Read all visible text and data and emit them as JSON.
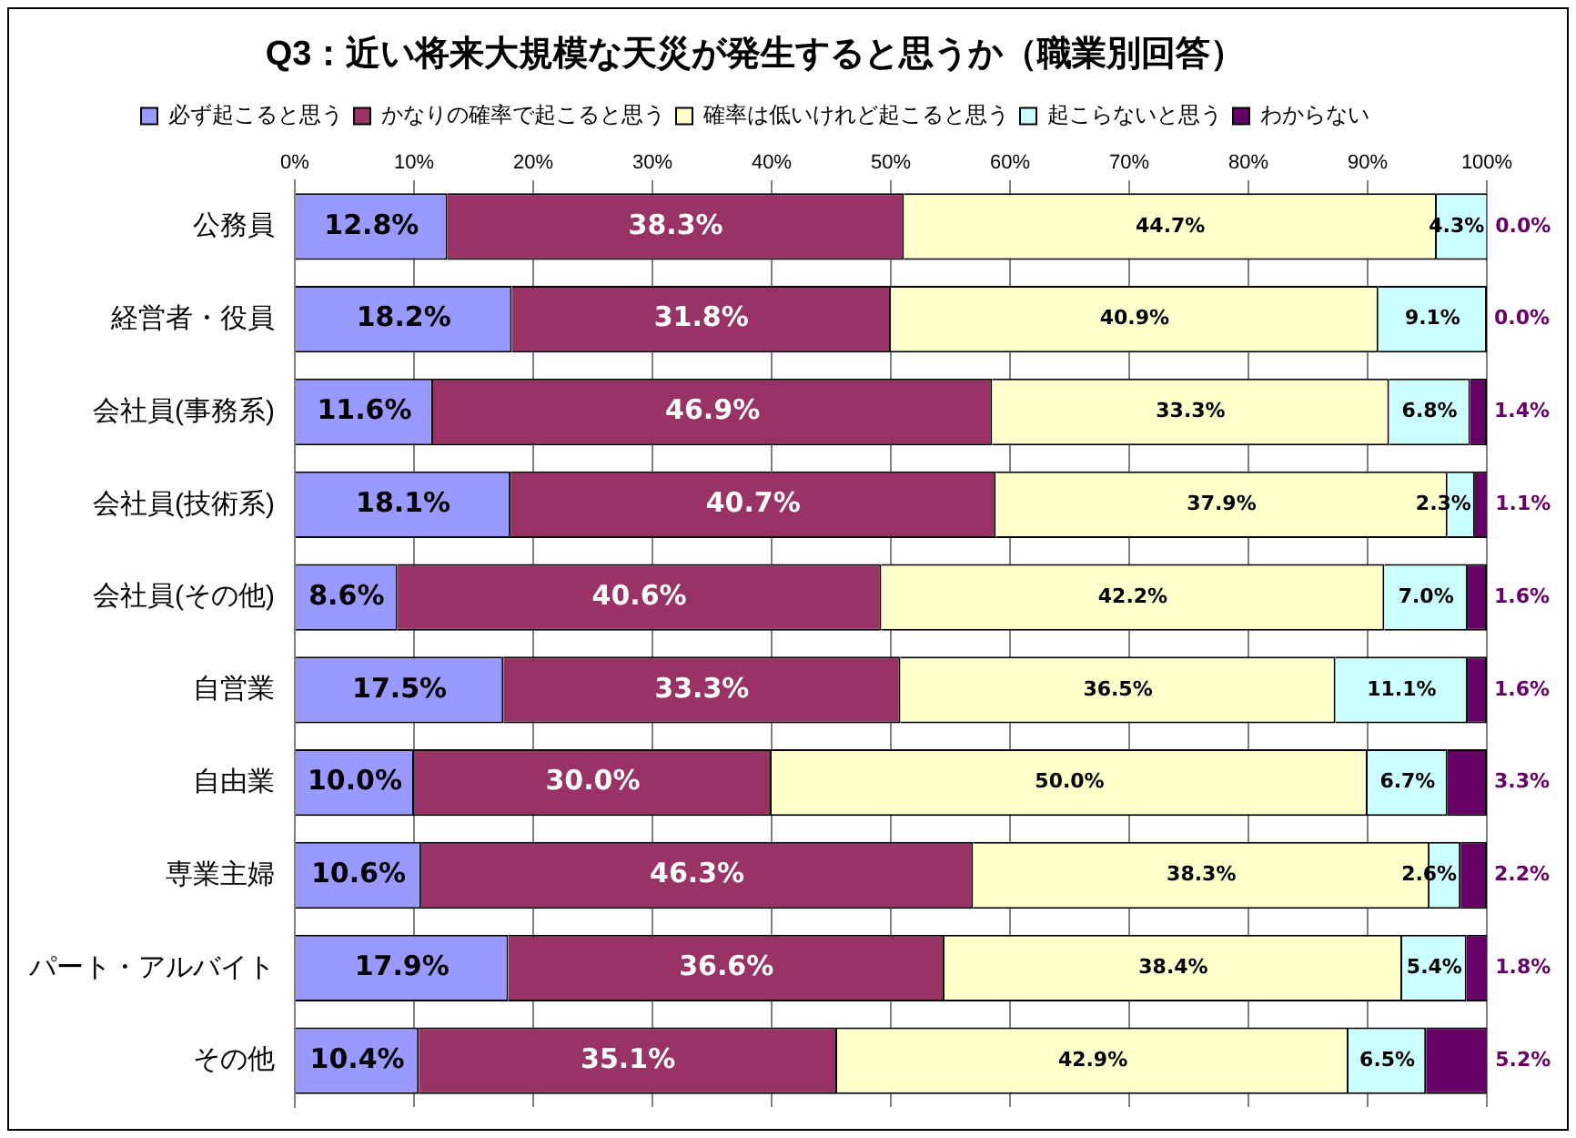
{
  "chart_data": {
    "type": "bar",
    "orientation": "horizontal",
    "stacked": true,
    "title": "Q3：近い将来大規模な天災が発生すると思うか（職業別回答）",
    "categories": [
      "公務員",
      "経営者・役員",
      "会社員(事務系)",
      "会社員(技術系)",
      "会社員(その他)",
      "自営業",
      "自由業",
      "専業主婦",
      "パート・アルバイト",
      "その他"
    ],
    "series": [
      {
        "name": "必ず起こると思う",
        "color": "#9999ff",
        "values": [
          12.8,
          18.2,
          11.6,
          18.1,
          8.6,
          17.5,
          10.0,
          10.6,
          17.9,
          10.4
        ],
        "value_labels": [
          "12.8%",
          "18.2%",
          "11.6%",
          "18.1%",
          "8.6%",
          "17.5%",
          "10.0%",
          "10.6%",
          "17.9%",
          "10.4%"
        ]
      },
      {
        "name": "かなりの確率で起こると思う",
        "color": "#993366",
        "values": [
          38.3,
          31.8,
          46.9,
          40.7,
          40.6,
          33.3,
          30.0,
          46.3,
          36.6,
          35.1
        ],
        "value_labels": [
          "38.3%",
          "31.8%",
          "46.9%",
          "40.7%",
          "40.6%",
          "33.3%",
          "30.0%",
          "46.3%",
          "36.6%",
          "35.1%"
        ]
      },
      {
        "name": "確率は低いけれど起こると思う",
        "color": "#ffffcc",
        "values": [
          44.7,
          40.9,
          33.3,
          37.9,
          42.2,
          36.5,
          50.0,
          38.3,
          38.4,
          42.9
        ],
        "value_labels": [
          "44.7%",
          "40.9%",
          "33.3%",
          "37.9%",
          "42.2%",
          "36.5%",
          "50.0%",
          "38.3%",
          "38.4%",
          "42.9%"
        ]
      },
      {
        "name": "起こらないと思う",
        "color": "#ccffff",
        "values": [
          4.3,
          9.1,
          6.8,
          2.3,
          7.0,
          11.1,
          6.7,
          2.6,
          5.4,
          6.5
        ],
        "value_labels": [
          "4.3%",
          "9.1%",
          "6.8%",
          "2.3%",
          "7.0%",
          "11.1%",
          "6.7%",
          "2.6%",
          "5.4%",
          "6.5%"
        ]
      },
      {
        "name": "わからない",
        "color": "#660066",
        "values": [
          0.0,
          0.0,
          1.4,
          1.1,
          1.6,
          1.6,
          3.3,
          2.2,
          1.8,
          5.2
        ],
        "value_labels": [
          "0.0%",
          "0.0%",
          "1.4%",
          "1.1%",
          "1.6%",
          "1.6%",
          "3.3%",
          "2.2%",
          "1.8%",
          "5.2%"
        ]
      }
    ],
    "xlim": [
      0,
      100
    ],
    "xticks": [
      {
        "value": 0,
        "label": "0%"
      },
      {
        "value": 10,
        "label": "10%"
      },
      {
        "value": 20,
        "label": "20%"
      },
      {
        "value": 30,
        "label": "30%"
      },
      {
        "value": 40,
        "label": "40%"
      },
      {
        "value": 50,
        "label": "50%"
      },
      {
        "value": 60,
        "label": "60%"
      },
      {
        "value": 70,
        "label": "70%"
      },
      {
        "value": 80,
        "label": "80%"
      },
      {
        "value": 90,
        "label": "90%"
      },
      {
        "value": 100,
        "label": "100%"
      }
    ],
    "grid": "x",
    "legend": "top"
  }
}
